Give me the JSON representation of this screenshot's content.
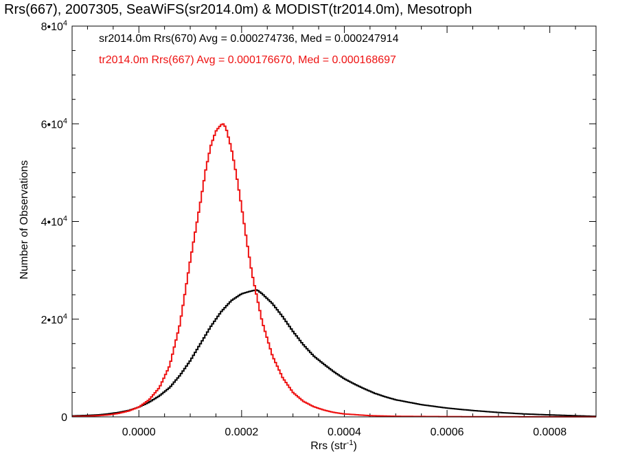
{
  "chart_data": {
    "type": "line",
    "style": "step-histogram",
    "title": "Rrs(667), 2007305, SeaWiFS(sr2014.0m) & MODIST(tr2014.0m), Mesotroph",
    "xlabel": "Rrs (str",
    "xlabel_sup": "-1",
    "xlabel_tail": ")",
    "ylabel": "Number of Observations",
    "xlim": [
      -0.00013,
      0.00089
    ],
    "ylim": [
      0,
      80000
    ],
    "grid": false,
    "x_ticks": [
      {
        "value": 0.0,
        "label": "0.0000"
      },
      {
        "value": 0.0002,
        "label": "0.0002"
      },
      {
        "value": 0.0004,
        "label": "0.0004"
      },
      {
        "value": 0.0006,
        "label": "0.0006"
      },
      {
        "value": 0.0008,
        "label": "0.0008"
      }
    ],
    "y_ticks": [
      {
        "value": 0,
        "label": "0",
        "sup": ""
      },
      {
        "value": 20000,
        "label": "2•10",
        "sup": "4"
      },
      {
        "value": 40000,
        "label": "4•10",
        "sup": "4"
      },
      {
        "value": 60000,
        "label": "6•10",
        "sup": "4"
      },
      {
        "value": 80000,
        "label": "8•10",
        "sup": "4"
      }
    ],
    "annotations": [
      {
        "text": "sr2014.0m Rrs(670) Avg = 0.000274736, Med = 0.000247914",
        "color": "#000000"
      },
      {
        "text": "tr2014.0m Rrs(667) Avg = 0.000176670, Med = 0.000168697",
        "color": "#ee1111"
      }
    ],
    "series": [
      {
        "color": "#000000",
        "x": [
          -0.00013,
          -0.0001,
          -8e-05,
          -6e-05,
          -4e-05,
          -2e-05,
          0.0,
          2e-05,
          4e-05,
          6e-05,
          8e-05,
          0.0001,
          0.00012,
          0.00014,
          0.00016,
          0.00018,
          0.0002,
          0.00022,
          0.00023,
          0.00024,
          0.00026,
          0.00028,
          0.0003,
          0.00032,
          0.00034,
          0.00036,
          0.00038,
          0.0004,
          0.00042,
          0.00044,
          0.00046,
          0.00048,
          0.0005,
          0.00055,
          0.0006,
          0.00065,
          0.0007,
          0.00075,
          0.0008,
          0.00089
        ],
        "y": [
          200,
          300,
          400,
          600,
          900,
          1300,
          2000,
          3000,
          4300,
          6000,
          8500,
          11500,
          15000,
          18500,
          21500,
          23800,
          25200,
          25800,
          26000,
          25200,
          23200,
          20500,
          17500,
          14800,
          12500,
          10800,
          9200,
          7800,
          6700,
          5700,
          4800,
          4100,
          3500,
          2500,
          1800,
          1300,
          900,
          600,
          400,
          100
        ]
      },
      {
        "color": "#ee1111",
        "x": [
          -0.00013,
          -0.0001,
          -8e-05,
          -6e-05,
          -4e-05,
          -2e-05,
          0.0,
          2e-05,
          4e-05,
          6e-05,
          8e-05,
          0.0001,
          0.00012,
          0.00013,
          0.00014,
          0.00015,
          0.00016,
          0.000165,
          0.00017,
          0.00018,
          0.00019,
          0.0002,
          0.00021,
          0.00022,
          0.00024,
          0.00026,
          0.00028,
          0.0003,
          0.00032,
          0.00034,
          0.00036,
          0.00038,
          0.0004,
          0.00045,
          0.0005,
          0.0006,
          0.0007,
          0.0008,
          0.00089
        ],
        "y": [
          100,
          150,
          250,
          400,
          700,
          1200,
          2000,
          3500,
          6000,
          10500,
          19000,
          32000,
          44000,
          50500,
          55500,
          58500,
          59800,
          60000,
          59000,
          55000,
          49500,
          43000,
          36000,
          29500,
          19500,
          12500,
          8000,
          5000,
          3200,
          2100,
          1400,
          900,
          600,
          250,
          120,
          50,
          30,
          20,
          10
        ]
      }
    ]
  }
}
